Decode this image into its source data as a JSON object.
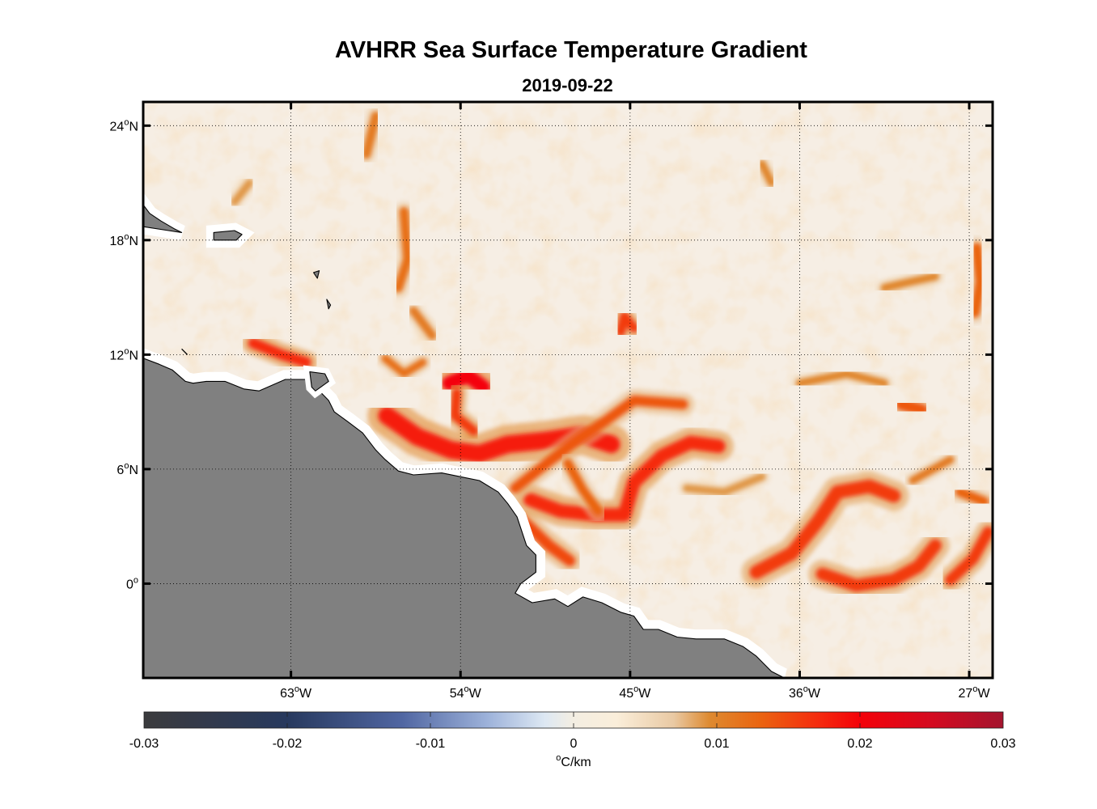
{
  "figure": {
    "title": "AVHRR Sea Surface Temperature Gradient",
    "subtitle": "2019-09-22"
  },
  "map": {
    "lon_range": [
      -70.8,
      -25.8
    ],
    "lat_range": [
      -4.9,
      25.2
    ],
    "land_color": "#808080",
    "coast_buffer_color": "#ffffff",
    "background_color": "#f6eee4",
    "lon_ticks": [
      {
        "value": -63,
        "deg": "63",
        "hemi": "W"
      },
      {
        "value": -54,
        "deg": "54",
        "hemi": "W"
      },
      {
        "value": -45,
        "deg": "45",
        "hemi": "W"
      },
      {
        "value": -36,
        "deg": "36",
        "hemi": "W"
      },
      {
        "value": -27,
        "deg": "27",
        "hemi": "W"
      }
    ],
    "lat_ticks": [
      {
        "value": 24,
        "deg": "24",
        "hemi": "N"
      },
      {
        "value": 18,
        "deg": "18",
        "hemi": "N"
      },
      {
        "value": 12,
        "deg": "12",
        "hemi": "N"
      },
      {
        "value": 6,
        "deg": "6",
        "hemi": "N"
      },
      {
        "value": 0,
        "deg": "0",
        "hemi": ""
      }
    ],
    "grid": "dotted",
    "fronts": [
      {
        "level": 0.018,
        "width": 2.2,
        "points": [
          [
            -57.9,
            8.8
          ],
          [
            -56.3,
            7.7
          ],
          [
            -54.5,
            7.0
          ],
          [
            -53.0,
            6.8
          ],
          [
            -51.5,
            7.3
          ],
          [
            -49.5,
            7.5
          ],
          [
            -47.5,
            7.8
          ],
          [
            -46.0,
            7.3
          ]
        ]
      },
      {
        "level": 0.02,
        "width": 1.8,
        "points": [
          [
            -54.6,
            10.5
          ],
          [
            -53.6,
            10.9
          ],
          [
            -52.8,
            10.3
          ]
        ]
      },
      {
        "level": 0.016,
        "width": 1.2,
        "points": [
          [
            -54.2,
            10.0
          ],
          [
            -54.3,
            8.8
          ],
          [
            -53.3,
            8.0
          ]
        ]
      },
      {
        "level": 0.017,
        "width": 1.7,
        "points": [
          [
            -50.3,
            4.4
          ],
          [
            -48.7,
            3.8
          ],
          [
            -46.8,
            3.6
          ],
          [
            -45.3,
            3.6
          ],
          [
            -44.8,
            5.3
          ],
          [
            -43.3,
            6.7
          ],
          [
            -41.8,
            7.4
          ],
          [
            -40.3,
            7.2
          ]
        ]
      },
      {
        "level": 0.015,
        "width": 1.4,
        "points": [
          [
            -50.8,
            3.4
          ],
          [
            -49.3,
            2.0
          ],
          [
            -48.2,
            1.2
          ]
        ]
      },
      {
        "level": 0.014,
        "width": 1.3,
        "points": [
          [
            -51.1,
            5.0
          ],
          [
            -49.3,
            6.4
          ],
          [
            -47.7,
            7.6
          ],
          [
            -46.2,
            8.6
          ],
          [
            -44.8,
            9.6
          ],
          [
            -42.2,
            9.4
          ]
        ]
      },
      {
        "level": 0.013,
        "width": 1.2,
        "points": [
          [
            -48.3,
            6.3
          ],
          [
            -47.5,
            4.9
          ],
          [
            -46.7,
            3.8
          ]
        ]
      },
      {
        "level": 0.016,
        "width": 1.7,
        "points": [
          [
            -38.3,
            0.6
          ],
          [
            -36.4,
            1.6
          ],
          [
            -35.0,
            3.3
          ],
          [
            -34.0,
            4.8
          ],
          [
            -32.3,
            5.1
          ],
          [
            -31.0,
            4.6
          ]
        ]
      },
      {
        "level": 0.016,
        "width": 1.6,
        "points": [
          [
            -34.8,
            0.5
          ],
          [
            -33.0,
            -0.1
          ],
          [
            -31.0,
            0.2
          ],
          [
            -29.7,
            0.9
          ],
          [
            -28.8,
            2.0
          ]
        ]
      },
      {
        "level": 0.016,
        "width": 1.4,
        "points": [
          [
            -28.0,
            0.2
          ],
          [
            -26.8,
            1.3
          ],
          [
            -26.0,
            2.7
          ]
        ]
      },
      {
        "level": 0.013,
        "width": 1.2,
        "points": [
          [
            -27.5,
            4.8
          ],
          [
            -26.2,
            4.3
          ]
        ]
      },
      {
        "level": 0.014,
        "width": 1.5,
        "points": [
          [
            -30.6,
            9.4
          ],
          [
            -29.5,
            9.1
          ]
        ]
      },
      {
        "level": 0.013,
        "width": 1.3,
        "points": [
          [
            -26.6,
            17.6
          ],
          [
            -26.4,
            15.8
          ],
          [
            -26.7,
            14.2
          ]
        ]
      },
      {
        "level": 0.017,
        "width": 1.3,
        "points": [
          [
            -65.0,
            12.6
          ],
          [
            -63.5,
            12.0
          ],
          [
            -62.2,
            11.6
          ]
        ]
      },
      {
        "level": 0.016,
        "width": 1.2,
        "points": [
          [
            -45.5,
            13.2
          ],
          [
            -45.3,
            14.0
          ],
          [
            -44.8,
            13.4
          ]
        ]
      },
      {
        "level": 0.012,
        "width": 1.2,
        "points": [
          [
            -57.0,
            19.5
          ],
          [
            -56.8,
            17.0
          ],
          [
            -57.3,
            15.5
          ]
        ]
      },
      {
        "level": 0.011,
        "width": 1.2,
        "points": [
          [
            -59.0,
            22.5
          ],
          [
            -58.5,
            24.5
          ]
        ]
      },
      {
        "level": 0.011,
        "width": 1.1,
        "points": [
          [
            -56.5,
            14.3
          ],
          [
            -55.5,
            13.0
          ]
        ]
      },
      {
        "level": 0.01,
        "width": 1.0,
        "points": [
          [
            -31.5,
            15.5
          ],
          [
            -30.2,
            15.8
          ],
          [
            -28.8,
            16.1
          ]
        ]
      },
      {
        "level": 0.01,
        "width": 1.0,
        "points": [
          [
            -38.0,
            22.0
          ],
          [
            -37.5,
            21.0
          ]
        ]
      },
      {
        "level": 0.01,
        "width": 1.0,
        "points": [
          [
            -36.0,
            10.5
          ],
          [
            -33.5,
            11.0
          ],
          [
            -31.5,
            10.5
          ]
        ]
      },
      {
        "level": 0.009,
        "width": 1.0,
        "points": [
          [
            -66.0,
            20.0
          ],
          [
            -65.2,
            21.0
          ]
        ]
      },
      {
        "level": 0.009,
        "width": 1.0,
        "points": [
          [
            -42.0,
            5.0
          ],
          [
            -40.0,
            4.8
          ],
          [
            -38.0,
            5.6
          ]
        ]
      },
      {
        "level": 0.011,
        "width": 1.0,
        "points": [
          [
            -30.0,
            5.4
          ],
          [
            -28.0,
            6.5
          ]
        ]
      },
      {
        "level": 0.012,
        "width": 1.0,
        "points": [
          [
            -58.0,
            11.8
          ],
          [
            -57.0,
            11.0
          ],
          [
            -56.0,
            11.6
          ]
        ]
      }
    ],
    "land": [
      {
        "points": [
          [
            -70.8,
            11.8
          ],
          [
            -70.0,
            11.5
          ],
          [
            -69.3,
            11.2
          ],
          [
            -68.6,
            10.6
          ],
          [
            -68.2,
            10.5
          ],
          [
            -67.5,
            10.6
          ],
          [
            -66.5,
            10.6
          ],
          [
            -65.5,
            10.2
          ],
          [
            -64.7,
            10.1
          ],
          [
            -64.0,
            10.4
          ],
          [
            -63.3,
            10.7
          ],
          [
            -62.5,
            10.7
          ],
          [
            -61.8,
            10.7
          ],
          [
            -61.6,
            10.2
          ],
          [
            -61.0,
            9.6
          ],
          [
            -60.7,
            9.0
          ],
          [
            -60.0,
            8.5
          ],
          [
            -59.2,
            7.9
          ],
          [
            -58.5,
            7.0
          ],
          [
            -58.0,
            6.5
          ],
          [
            -57.3,
            5.9
          ],
          [
            -56.5,
            5.7
          ],
          [
            -55.0,
            5.8
          ],
          [
            -54.0,
            5.6
          ],
          [
            -53.0,
            5.4
          ],
          [
            -52.0,
            4.8
          ],
          [
            -51.5,
            4.2
          ],
          [
            -51.0,
            3.5
          ],
          [
            -50.5,
            2.0
          ],
          [
            -50.0,
            1.5
          ],
          [
            -50.0,
            0.6
          ],
          [
            -50.8,
            0.0
          ],
          [
            -51.1,
            -0.5
          ],
          [
            -50.2,
            -1.0
          ],
          [
            -49.0,
            -0.8
          ],
          [
            -48.3,
            -1.2
          ],
          [
            -47.5,
            -0.7
          ],
          [
            -46.5,
            -1.0
          ],
          [
            -45.5,
            -1.5
          ],
          [
            -44.8,
            -1.7
          ],
          [
            -44.3,
            -2.4
          ],
          [
            -43.5,
            -2.4
          ],
          [
            -42.5,
            -2.8
          ],
          [
            -41.5,
            -2.9
          ],
          [
            -40.0,
            -2.9
          ],
          [
            -39.0,
            -3.3
          ],
          [
            -38.3,
            -3.8
          ],
          [
            -37.5,
            -4.6
          ],
          [
            -36.9,
            -4.9
          ],
          [
            -70.8,
            -4.9
          ]
        ],
        "buffer": 0.5
      },
      {
        "points": [
          [
            -70.8,
            19.8
          ],
          [
            -70.5,
            19.4
          ],
          [
            -69.9,
            19.0
          ],
          [
            -69.2,
            18.6
          ],
          [
            -68.8,
            18.4
          ],
          [
            -69.5,
            18.5
          ],
          [
            -70.8,
            18.7
          ]
        ],
        "buffer": 0.4
      },
      {
        "points": [
          [
            -67.1,
            18.4
          ],
          [
            -66.0,
            18.5
          ],
          [
            -65.6,
            18.3
          ],
          [
            -65.9,
            18.0
          ],
          [
            -67.1,
            18.0
          ]
        ],
        "buffer": 0.4
      },
      {
        "points": [
          [
            -62.0,
            11.1
          ],
          [
            -61.2,
            11.0
          ],
          [
            -61.0,
            10.6
          ],
          [
            -61.7,
            10.1
          ],
          [
            -61.9,
            10.3
          ]
        ],
        "buffer": 0.3
      },
      {
        "points": [
          [
            -61.8,
            16.3
          ],
          [
            -61.5,
            16.4
          ],
          [
            -61.6,
            16.0
          ]
        ],
        "buffer": 0
      },
      {
        "points": [
          [
            -61.1,
            14.9
          ],
          [
            -60.9,
            14.6
          ],
          [
            -61.0,
            14.4
          ]
        ],
        "buffer": 0
      },
      {
        "points": [
          [
            -68.8,
            12.3
          ],
          [
            -68.5,
            12.0
          ]
        ],
        "buffer": 0
      }
    ]
  },
  "colorbar": {
    "range": [
      -0.03,
      0.03
    ],
    "ticks": [
      "-0.03",
      "-0.02",
      "-0.01",
      "0",
      "0.01",
      "0.02",
      "0.03"
    ],
    "tick_values": [
      -0.03,
      -0.02,
      -0.01,
      0,
      0.01,
      0.02,
      0.03
    ],
    "label_deg": "o",
    "label_unit": "C/km",
    "stops": [
      {
        "v": -0.03,
        "color": "#3b3b3d"
      },
      {
        "v": -0.02,
        "color": "#27395e"
      },
      {
        "v": -0.012,
        "color": "#5066a2"
      },
      {
        "v": -0.006,
        "color": "#9db2da"
      },
      {
        "v": -0.002,
        "color": "#dde8f3"
      },
      {
        "v": 0.0,
        "color": "#f4eee2"
      },
      {
        "v": 0.003,
        "color": "#faeeda"
      },
      {
        "v": 0.007,
        "color": "#e9c9a3"
      },
      {
        "v": 0.0095,
        "color": "#de8a30"
      },
      {
        "v": 0.013,
        "color": "#ea6410"
      },
      {
        "v": 0.017,
        "color": "#f52c0e"
      },
      {
        "v": 0.02,
        "color": "#f40109"
      },
      {
        "v": 0.025,
        "color": "#d40a20"
      },
      {
        "v": 0.03,
        "color": "#a4142e"
      }
    ]
  }
}
